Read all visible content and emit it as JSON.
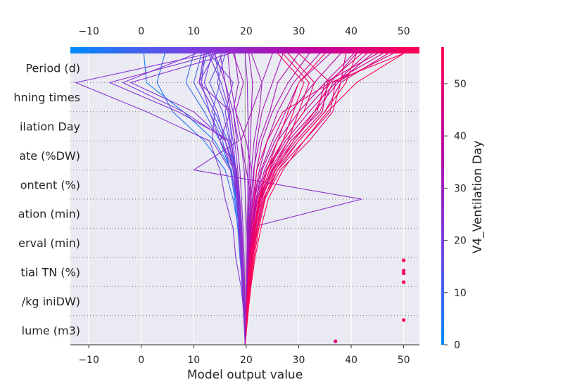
{
  "chart_data": {
    "type": "line",
    "title": "",
    "xlabel": "Model output value",
    "xlim": [
      -13.5,
      53
    ],
    "x_ticks": [
      -10,
      0,
      10,
      20,
      30,
      40,
      50
    ],
    "x_tick_labels": [
      "−10",
      "0",
      "10",
      "20",
      "30",
      "40",
      "50"
    ],
    "base_value": 19.8,
    "features": [
      "Period (d)",
      "hning times",
      "ilation Day",
      "ate (%DW)",
      "ontent (%)",
      "ation (min)",
      "erval (min)",
      "tial TN (%)",
      "/kg iniDW)",
      "lume (m3)"
    ],
    "colorbar": {
      "label": "V4_Ventilation Day",
      "min": 0,
      "max": 57,
      "ticks": [
        0,
        10,
        20,
        30,
        40,
        50
      ],
      "tick_labels": [
        "0",
        "10",
        "20",
        "30",
        "40",
        "50"
      ],
      "colors": [
        "#008bfb",
        "#7a3fe0",
        "#c1009f",
        "#ff0052"
      ]
    },
    "series_note": "each line runs from base value (bottom) to final prediction (top); values listed bottom-to-top feature order",
    "series": [
      {
        "c": 0.05,
        "values": [
          19.8,
          19.7,
          19.5,
          19.2,
          18.6,
          18.0,
          17.2,
          14.0,
          8.0,
          1.0,
          0.5
        ]
      },
      {
        "c": 0.1,
        "values": [
          19.8,
          19.6,
          19.4,
          19.0,
          18.5,
          17.5,
          16.0,
          12.0,
          6.0,
          3.0,
          4.5
        ]
      },
      {
        "c": 0.14,
        "values": [
          19.8,
          19.7,
          19.5,
          19.1,
          18.8,
          18.2,
          17.0,
          15.0,
          12.0,
          8.5,
          10.0
        ]
      },
      {
        "c": 0.18,
        "values": [
          19.8,
          19.8,
          19.6,
          19.2,
          18.9,
          18.5,
          18.0,
          16.5,
          14.0,
          11.0,
          12.5
        ]
      },
      {
        "c": 0.2,
        "values": [
          19.8,
          19.6,
          19.3,
          18.8,
          18.4,
          17.8,
          17.0,
          15.5,
          13.0,
          10.0,
          11.5
        ]
      },
      {
        "c": 0.24,
        "values": [
          19.8,
          19.7,
          19.5,
          19.3,
          19.0,
          18.6,
          18.0,
          16.0,
          13.5,
          15.0,
          14.0
        ]
      },
      {
        "c": 0.27,
        "values": [
          19.8,
          19.7,
          19.4,
          19.0,
          18.6,
          18.2,
          17.5,
          16.8,
          15.5,
          13.0,
          15.5
        ]
      },
      {
        "c": 0.3,
        "values": [
          19.8,
          19.6,
          19.3,
          19.0,
          18.7,
          18.3,
          18.0,
          17.5,
          16.5,
          14.5,
          16.0
        ]
      },
      {
        "c": 0.32,
        "values": [
          19.8,
          19.7,
          19.5,
          19.2,
          18.9,
          18.5,
          18.1,
          17.0,
          16.0,
          17.5,
          13.0
        ]
      },
      {
        "c": 0.34,
        "values": [
          19.8,
          19.5,
          19.2,
          18.9,
          18.6,
          18.2,
          17.8,
          16.0,
          14.5,
          12.0,
          13.5
        ]
      },
      {
        "c": 0.35,
        "values": [
          19.8,
          19.7,
          19.4,
          19.0,
          18.8,
          18.4,
          17.6,
          15.0,
          13.0,
          11.5,
          12.0
        ]
      },
      {
        "c": 0.36,
        "values": [
          19.8,
          19.6,
          19.3,
          19.1,
          18.7,
          18.3,
          17.9,
          17.2,
          16.8,
          15.2,
          12.8
        ]
      },
      {
        "c": 0.38,
        "values": [
          19.8,
          19.8,
          19.6,
          19.2,
          18.9,
          18.4,
          17.0,
          13.5,
          14.0,
          11.0,
          14.0
        ]
      },
      {
        "c": 0.4,
        "values": [
          19.8,
          19.6,
          19.0,
          18.0,
          17.5,
          16.0,
          15.0,
          13.0,
          1.0,
          -12.5,
          13.0
        ]
      },
      {
        "c": 0.41,
        "values": [
          19.8,
          19.7,
          19.5,
          19.3,
          19.1,
          18.7,
          18.2,
          16.5,
          8.0,
          -3.5,
          10.5
        ]
      },
      {
        "c": 0.42,
        "values": [
          19.8,
          19.6,
          19.4,
          19.1,
          18.8,
          18.5,
          18.0,
          17.0,
          7.0,
          -6.0,
          14.5
        ]
      },
      {
        "c": 0.43,
        "values": [
          19.8,
          19.7,
          19.5,
          19.3,
          18.9,
          18.3,
          17.5,
          16.0,
          10.0,
          -2.0,
          17.0
        ]
      },
      {
        "c": 0.44,
        "values": [
          19.8,
          19.9,
          20.0,
          20.5,
          20.2,
          42.0,
          10.0,
          18.5,
          17.5,
          16.0,
          15.0
        ]
      },
      {
        "c": 0.45,
        "values": [
          19.8,
          19.6,
          19.3,
          19.0,
          18.7,
          18.4,
          18.2,
          15.0,
          17.0,
          11.0,
          12.0
        ]
      },
      {
        "c": 0.46,
        "values": [
          19.8,
          19.7,
          19.6,
          19.4,
          19.2,
          18.8,
          18.4,
          17.8,
          17.0,
          16.0,
          14.0
        ]
      },
      {
        "c": 0.48,
        "values": [
          19.8,
          19.8,
          19.7,
          19.6,
          19.4,
          19.1,
          18.8,
          18.2,
          17.5,
          18.5,
          17.8
        ]
      },
      {
        "c": 0.5,
        "values": [
          19.8,
          19.9,
          20.0,
          20.2,
          20.1,
          19.9,
          19.6,
          19.0,
          18.0,
          17.0,
          16.5
        ]
      },
      {
        "c": 0.52,
        "values": [
          19.8,
          19.9,
          20.1,
          20.3,
          20.5,
          20.8,
          21.0,
          21.5,
          22.5,
          23.0,
          21.0
        ]
      },
      {
        "c": 0.54,
        "values": [
          19.8,
          19.9,
          20.0,
          20.2,
          20.4,
          20.6,
          21.0,
          20.0,
          18.0,
          19.5,
          17.5
        ]
      },
      {
        "c": 0.56,
        "values": [
          19.8,
          19.9,
          20.1,
          20.4,
          20.7,
          21.0,
          20.0,
          19.0,
          21.0,
          23.0,
          25.0
        ]
      },
      {
        "c": 0.58,
        "values": [
          19.8,
          20.0,
          20.2,
          20.5,
          20.8,
          21.2,
          21.5,
          22.0,
          23.0,
          25.0,
          27.0
        ]
      },
      {
        "c": 0.6,
        "values": [
          19.8,
          19.9,
          20.1,
          20.3,
          20.6,
          20.9,
          21.4,
          22.5,
          24.5,
          26.0,
          30.0
        ]
      },
      {
        "c": 0.62,
        "values": [
          19.8,
          20.0,
          20.2,
          20.4,
          20.8,
          21.3,
          22.0,
          23.0,
          25.0,
          28.0,
          32.0
        ]
      },
      {
        "c": 0.64,
        "values": [
          19.8,
          20.0,
          20.3,
          20.6,
          21.0,
          21.5,
          22.5,
          24.0,
          26.0,
          29.0,
          34.0
        ]
      },
      {
        "c": 0.66,
        "values": [
          19.8,
          20.0,
          20.2,
          20.5,
          20.9,
          21.6,
          22.8,
          25.0,
          27.5,
          30.0,
          36.0
        ]
      },
      {
        "c": 0.68,
        "values": [
          19.8,
          20.1,
          20.3,
          20.7,
          21.2,
          21.9,
          23.0,
          25.5,
          28.5,
          33.0,
          38.0
        ]
      },
      {
        "c": 0.7,
        "values": [
          19.8,
          20.0,
          20.3,
          20.6,
          21.0,
          21.8,
          23.5,
          26.0,
          30.0,
          35.0,
          40.5
        ]
      },
      {
        "c": 0.72,
        "values": [
          19.8,
          20.1,
          20.4,
          20.8,
          21.3,
          22.0,
          23.8,
          27.0,
          31.0,
          36.0,
          41.0
        ]
      },
      {
        "c": 0.74,
        "values": [
          19.8,
          20.0,
          20.3,
          20.7,
          21.2,
          22.2,
          24.0,
          27.5,
          32.0,
          37.0,
          43.0
        ]
      },
      {
        "c": 0.76,
        "values": [
          19.8,
          20.1,
          20.4,
          20.9,
          21.5,
          22.5,
          24.5,
          28.0,
          33.0,
          37.5,
          44.0
        ]
      },
      {
        "c": 0.78,
        "values": [
          19.8,
          20.1,
          20.5,
          21.0,
          21.6,
          22.6,
          24.8,
          28.5,
          34.0,
          36.5,
          46.0
        ]
      },
      {
        "c": 0.8,
        "values": [
          19.8,
          20.0,
          20.4,
          20.8,
          21.4,
          22.4,
          25.0,
          29.0,
          33.5,
          35.0,
          45.0
        ]
      },
      {
        "c": 0.82,
        "values": [
          19.8,
          20.1,
          20.5,
          21.1,
          21.8,
          22.8,
          25.5,
          30.0,
          35.0,
          38.0,
          47.0
        ]
      },
      {
        "c": 0.84,
        "values": [
          19.8,
          20.2,
          20.6,
          21.2,
          22.0,
          23.2,
          26.0,
          31.0,
          36.0,
          37.0,
          48.0
        ]
      },
      {
        "c": 0.86,
        "values": [
          19.8,
          20.1,
          20.5,
          21.0,
          21.7,
          22.7,
          25.2,
          29.5,
          34.5,
          35.5,
          42.0
        ]
      },
      {
        "c": 0.88,
        "values": [
          19.8,
          20.2,
          20.7,
          21.3,
          22.1,
          23.5,
          26.5,
          32.0,
          36.5,
          38.0,
          39.0
        ]
      },
      {
        "c": 0.9,
        "values": [
          19.8,
          20.0,
          20.3,
          20.6,
          21.0,
          21.5,
          22.0,
          24.0,
          27.0,
          36.0,
          30.0
        ]
      },
      {
        "c": 0.92,
        "values": [
          19.8,
          20.1,
          20.5,
          21.0,
          21.6,
          22.4,
          24.0,
          27.0,
          31.0,
          33.0,
          28.0
        ]
      },
      {
        "c": 0.94,
        "values": [
          19.8,
          20.2,
          20.6,
          21.2,
          22.0,
          23.0,
          25.0,
          28.0,
          30.0,
          32.0,
          27.0
        ]
      },
      {
        "c": 0.95,
        "values": [
          19.8,
          20.1,
          20.5,
          21.0,
          21.7,
          22.6,
          24.4,
          27.0,
          29.0,
          31.0,
          26.0
        ]
      },
      {
        "c": 0.97,
        "values": [
          19.8,
          20.2,
          20.7,
          21.3,
          22.2,
          23.4,
          25.6,
          29.0,
          33.0,
          36.0,
          50.0
        ]
      },
      {
        "c": 0.98,
        "values": [
          19.8,
          20.0,
          20.4,
          20.9,
          21.5,
          22.5,
          24.0,
          26.0,
          28.0,
          30.0,
          35.0
        ]
      },
      {
        "c": 0.99,
        "values": [
          19.8,
          20.3,
          20.8,
          21.5,
          22.4,
          23.6,
          26.0,
          30.0,
          35.0,
          39.0,
          41.0
        ]
      },
      {
        "c": 1.0,
        "values": [
          19.8,
          20.3,
          20.9,
          21.7,
          22.8,
          24.2,
          27.0,
          31.0,
          35.5,
          41.0,
          50.0
        ]
      },
      {
        "c": 0.45,
        "values": [
          19.8,
          19.9,
          20.0,
          20.1,
          20.2,
          20.3,
          20.3,
          20.5,
          20.3,
          20.2,
          19.8
        ]
      },
      {
        "c": 0.55,
        "values": [
          19.8,
          19.9,
          20.0,
          20.2,
          20.3,
          20.5,
          20.6,
          20.8,
          21.0,
          21.2,
          20.5
        ]
      }
    ],
    "outliers": [
      {
        "x": 50,
        "feature_pos": 2.9,
        "c": 0.97
      },
      {
        "x": 50,
        "feature_pos": 2.55,
        "c": 0.96
      },
      {
        "x": 50,
        "feature_pos": 2.45,
        "c": 0.95
      },
      {
        "x": 50,
        "feature_pos": 2.15,
        "c": 0.97
      },
      {
        "x": 50,
        "feature_pos": 0.85,
        "c": 0.98
      },
      {
        "x": 37,
        "feature_pos": 0.12,
        "c": 0.85
      }
    ]
  }
}
